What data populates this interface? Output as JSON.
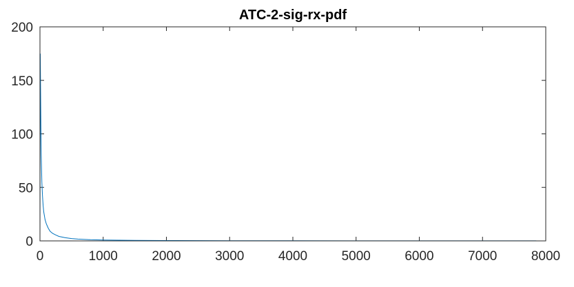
{
  "chart_data": {
    "type": "line",
    "title": "ATC-2-sig-rx-pdf",
    "xlabel": "",
    "ylabel": "",
    "xlim": [
      0,
      8000
    ],
    "ylim": [
      0,
      200
    ],
    "xticks": [
      0,
      1000,
      2000,
      3000,
      4000,
      5000,
      6000,
      7000,
      8000
    ],
    "yticks": [
      0,
      50,
      100,
      150,
      200
    ],
    "xtick_labels": [
      "0",
      "1000",
      "2000",
      "3000",
      "4000",
      "5000",
      "6000",
      "7000",
      "8000"
    ],
    "ytick_labels": [
      "0",
      "50",
      "100",
      "150",
      "200"
    ],
    "grid": false,
    "box": true,
    "series": [
      {
        "color": "#0072bd",
        "x": [
          0,
          5,
          10,
          15,
          20,
          30,
          40,
          50,
          60,
          80,
          100,
          130,
          160,
          200,
          250,
          300,
          400,
          500,
          600,
          800,
          1000,
          1500,
          2000,
          3000,
          4000,
          5000,
          6000,
          7000,
          7850
        ],
        "y": [
          0,
          175,
          140,
          105,
          80,
          55,
          42,
          33,
          27,
          20,
          16,
          12,
          9,
          7,
          5.5,
          4.2,
          3,
          2.2,
          1.7,
          1.1,
          0.8,
          0.5,
          0.35,
          0.2,
          0.15,
          0.1,
          0.08,
          0.06,
          0.05
        ]
      }
    ]
  }
}
